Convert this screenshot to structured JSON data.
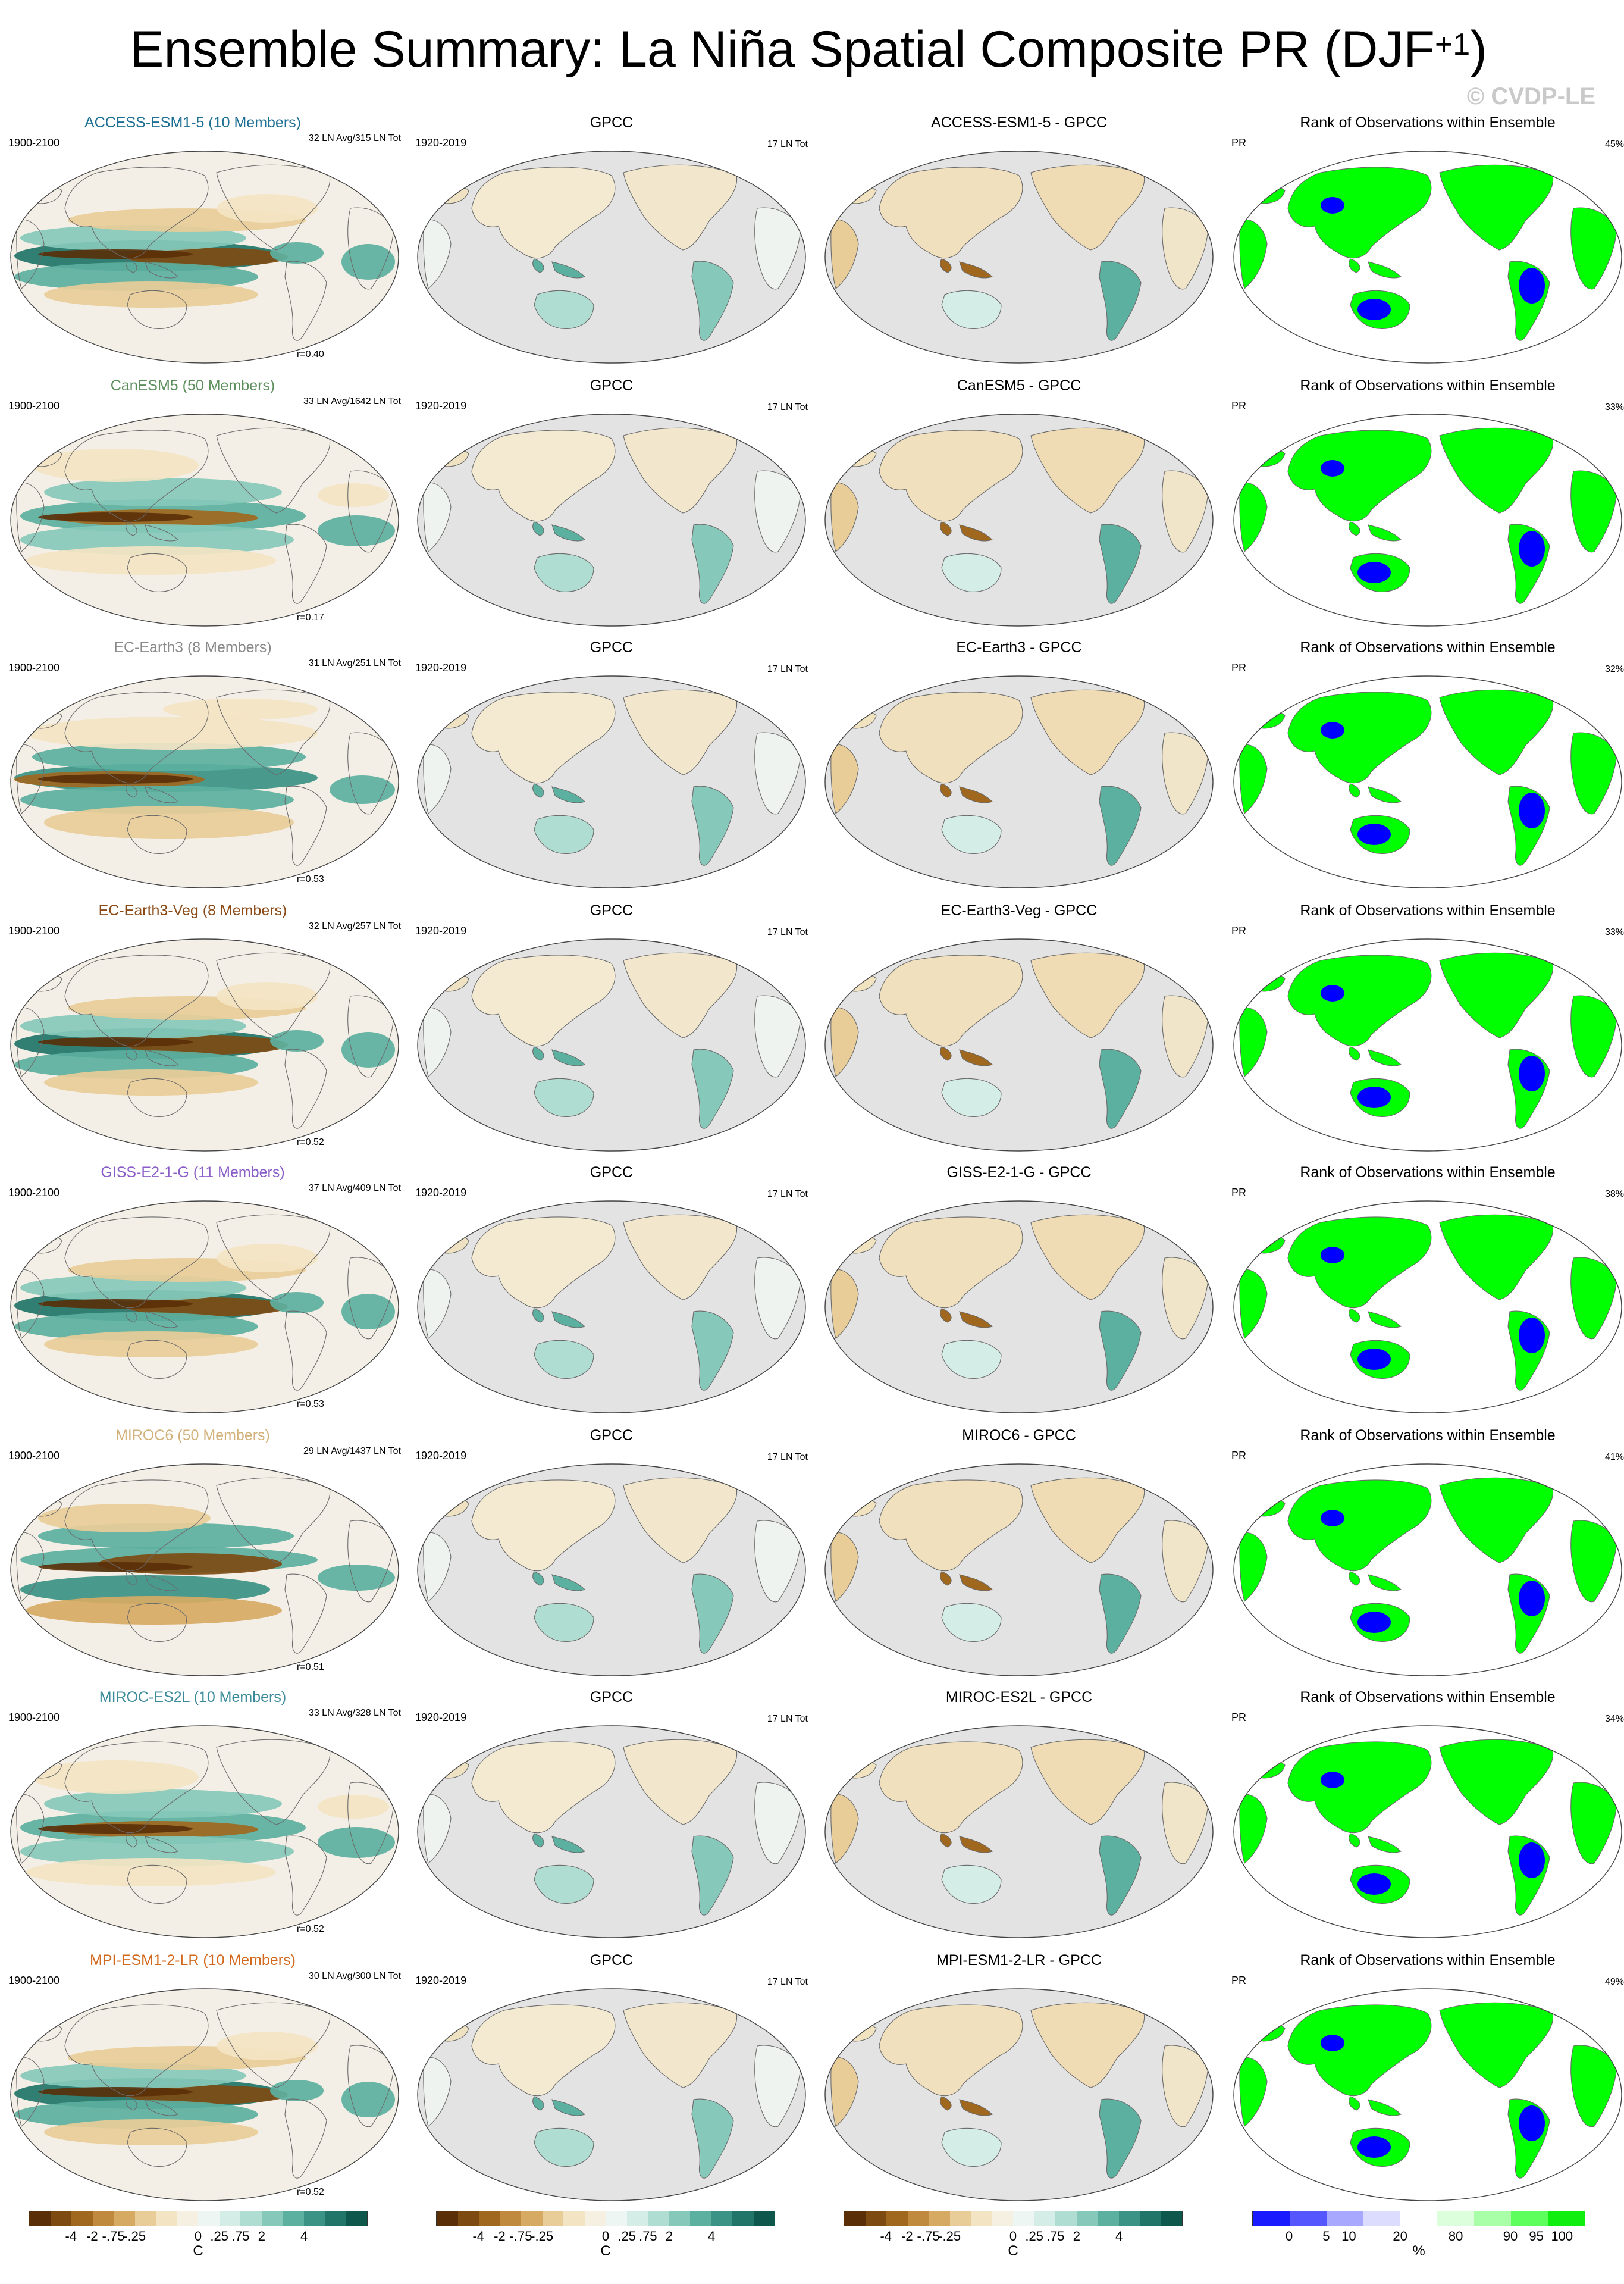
{
  "title": {
    "main": "Ensemble Summary: La Niña Spatial Composite PR (DJF",
    "sup": "+1",
    "close": ")"
  },
  "watermark": "© CVDP-LE",
  "colors": {
    "diverging": [
      "#5a2f08",
      "#7d4b12",
      "#a0681f",
      "#c08a3e",
      "#d7aa64",
      "#e8cd98",
      "#f3e4c4",
      "#f6f0e3",
      "#eef6f3",
      "#d4ede6",
      "#b0ddd2",
      "#86c9ba",
      "#5cb0a0",
      "#3a9385",
      "#207468",
      "#0d574c"
    ],
    "rank": [
      "#1a1aff",
      "#5656ff",
      "#a8a8ff",
      "#dcdcff",
      "#ffffff",
      "#dcffdc",
      "#a8ffa8",
      "#5cff5c",
      "#10ee10"
    ],
    "land_gray": "#e3e3e3",
    "ocean_model": "#f4efe6",
    "rank_high": "#00ff00",
    "rank_low": "#0000ff"
  },
  "rows": [
    {
      "model": "ACCESS-ESM1-5 (10 Members)",
      "diff": "ACCESS-ESM1-5 - GPCC",
      "color": "#1d6f93",
      "stat": "32 LN Avg/315 LN Tot",
      "r": "r=0.40",
      "rank": "45%",
      "pattern": 0
    },
    {
      "model": "CanESM5 (50 Members)",
      "diff": "CanESM5 - GPCC",
      "color": "#5d8f5d",
      "stat": "33 LN Avg/1642 LN Tot",
      "r": "r=0.17",
      "rank": "33%",
      "pattern": 1
    },
    {
      "model": "EC-Earth3 (8 Members)",
      "diff": "EC-Earth3 - GPCC",
      "color": "#8a8a8a",
      "stat": "31 LN Avg/251 LN Tot",
      "r": "r=0.53",
      "rank": "32%",
      "pattern": 2
    },
    {
      "model": "EC-Earth3-Veg (8 Members)",
      "diff": "EC-Earth3-Veg - GPCC",
      "color": "#8b4a16",
      "stat": "32 LN Avg/257 LN Tot",
      "r": "r=0.52",
      "rank": "33%",
      "pattern": 0
    },
    {
      "model": "GISS-E2-1-G (11 Members)",
      "diff": "GISS-E2-1-G - GPCC",
      "color": "#8a5ec8",
      "stat": "37 LN Avg/409 LN Tot",
      "r": "r=0.53",
      "rank": "38%",
      "pattern": 0
    },
    {
      "model": "MIROC6 (50 Members)",
      "diff": "MIROC6 - GPCC",
      "color": "#d2b27a",
      "stat": "29 LN Avg/1437 LN Tot",
      "r": "r=0.51",
      "rank": "41%",
      "pattern": 3
    },
    {
      "model": "MIROC-ES2L (10 Members)",
      "diff": "MIROC-ES2L - GPCC",
      "color": "#3b8a9a",
      "stat": "33 LN Avg/328 LN Tot",
      "r": "r=0.52",
      "rank": "34%",
      "pattern": 1
    },
    {
      "model": "MPI-ESM1-2-LR (10 Members)",
      "diff": "MPI-ESM1-2-LR - GPCC",
      "color": "#d2691e",
      "stat": "30 LN Avg/300 LN Tot",
      "r": "r=0.52",
      "rank": "49%",
      "pattern": 0
    }
  ],
  "common": {
    "model_period": "1900-2100",
    "obs_title": "GPCC",
    "obs_period": "1920-2019",
    "obs_stat": "17 LN Tot",
    "rank_title": "Rank of Observations within Ensemble",
    "rank_var": "PR"
  },
  "colorbars": {
    "diverging": {
      "ticks": [
        {
          "label": "-4",
          "at": 0.125
        },
        {
          "label": "-2",
          "at": 0.1875
        },
        {
          "label": "-.75",
          "at": 0.25
        },
        {
          "label": "-.25",
          "at": 0.3125
        },
        {
          "label": "0",
          "at": 0.5
        },
        {
          "label": ".25",
          "at": 0.5625
        },
        {
          "label": ".75",
          "at": 0.625
        },
        {
          "label": "2",
          "at": 0.6875
        },
        {
          "label": "4",
          "at": 0.8125
        }
      ],
      "unit": "C"
    },
    "rank": {
      "ticks": [
        {
          "label": "0",
          "at": 0.111
        },
        {
          "label": "5",
          "at": 0.222
        },
        {
          "label": "10",
          "at": 0.29
        },
        {
          "label": "20",
          "at": 0.444
        },
        {
          "label": "80",
          "at": 0.611
        },
        {
          "label": "90",
          "at": 0.775
        },
        {
          "label": "95",
          "at": 0.853
        },
        {
          "label": "100",
          "at": 0.93
        }
      ],
      "unit": "%"
    }
  }
}
